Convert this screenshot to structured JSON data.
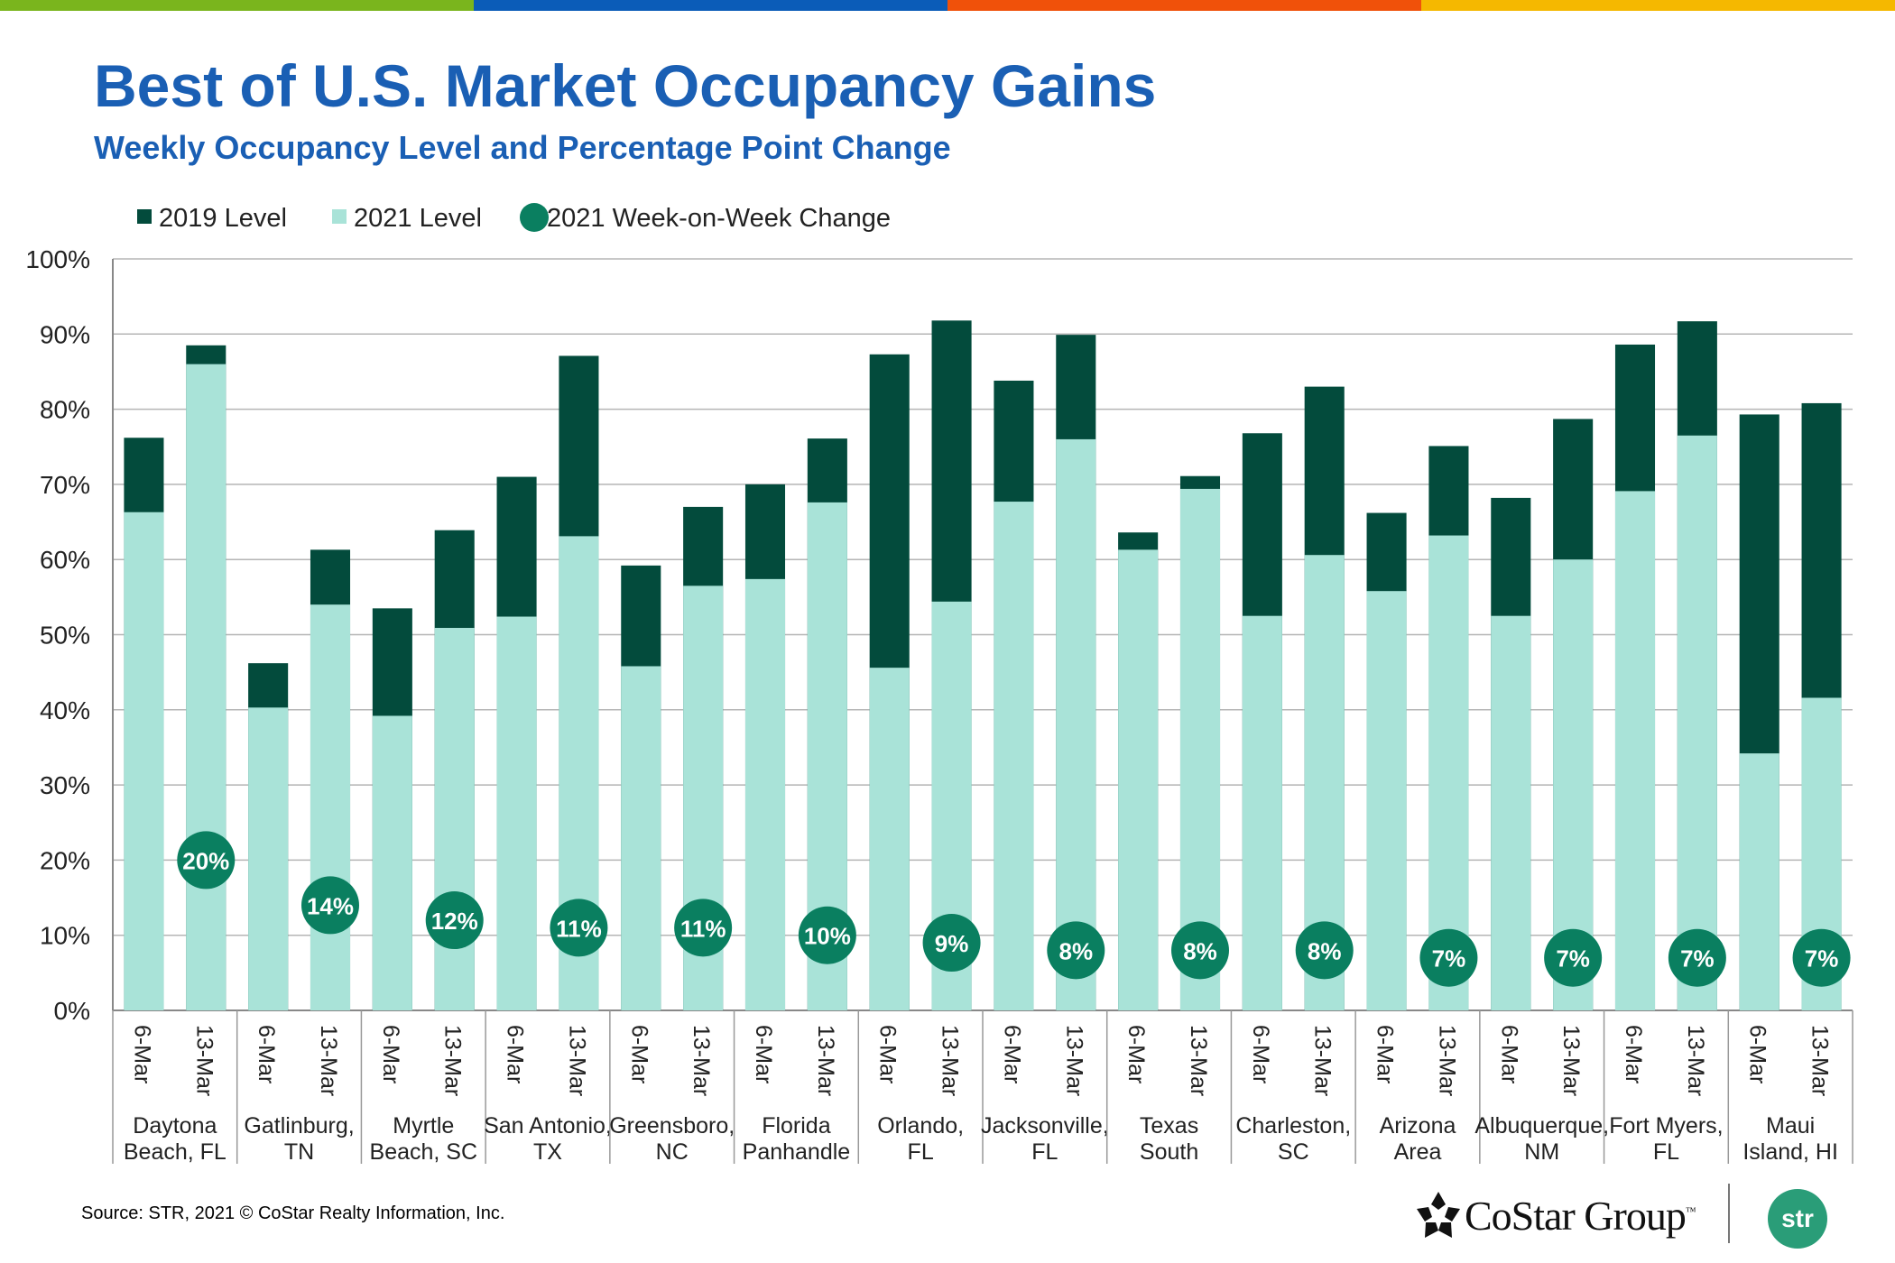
{
  "top_bar_colors": [
    "#7ab51d",
    "#0b5cb8",
    "#f0510a",
    "#f5b800"
  ],
  "header": {
    "title": "Best of U.S. Market Occupancy Gains",
    "subtitle": "Weekly Occupancy Level and Percentage Point Change"
  },
  "footer": {
    "source": "Source: STR, 2021 © CoStar Realty Information, Inc.",
    "costar_logo_text": "CoStar Group",
    "costar_tm": "™",
    "str_logo_text": "str"
  },
  "chart_data": {
    "type": "bar",
    "stacking": "overlapping",
    "y_ticks": [
      "0%",
      "10%",
      "20%",
      "30%",
      "40%",
      "50%",
      "60%",
      "70%",
      "80%",
      "90%",
      "100%"
    ],
    "ylim": [
      0,
      100
    ],
    "grid": true,
    "legend_position": "top-left",
    "legend": [
      {
        "label": "2019 Level",
        "shape": "square",
        "color": "#034b3c"
      },
      {
        "label": "2021 Level",
        "shape": "square",
        "color": "#a9e3d8"
      },
      {
        "label": "2021 Week-on-Week Change",
        "shape": "circle",
        "color": "#0a7f60"
      }
    ],
    "colors": {
      "level_2019": "#034b3c",
      "level_2021": "#a9e3d8",
      "change": "#0a7f60"
    },
    "groups": [
      {
        "market": [
          "Daytona",
          "Beach, FL"
        ],
        "weeks": [
          "6-Mar",
          "13-Mar"
        ],
        "level_2019": [
          76.2,
          88.5
        ],
        "level_2021": [
          66.3,
          86.0
        ],
        "change_label": "20%",
        "change_value": 20
      },
      {
        "market": [
          "Gatlinburg,",
          "TN"
        ],
        "weeks": [
          "6-Mar",
          "13-Mar"
        ],
        "level_2019": [
          46.2,
          61.3
        ],
        "level_2021": [
          40.3,
          54.0
        ],
        "change_label": "14%",
        "change_value": 14
      },
      {
        "market": [
          "Myrtle",
          "Beach, SC"
        ],
        "weeks": [
          "6-Mar",
          "13-Mar"
        ],
        "level_2019": [
          53.5,
          63.9
        ],
        "level_2021": [
          39.2,
          50.9
        ],
        "change_label": "12%",
        "change_value": 12
      },
      {
        "market": [
          "San Antonio,",
          "TX"
        ],
        "weeks": [
          "6-Mar",
          "13-Mar"
        ],
        "level_2019": [
          71.0,
          87.1
        ],
        "level_2021": [
          52.4,
          63.1
        ],
        "change_label": "11%",
        "change_value": 11
      },
      {
        "market": [
          "Greensboro,",
          "NC"
        ],
        "weeks": [
          "6-Mar",
          "13-Mar"
        ],
        "level_2019": [
          59.2,
          67.0
        ],
        "level_2021": [
          45.8,
          56.5
        ],
        "change_label": "11%",
        "change_value": 11
      },
      {
        "market": [
          "Florida",
          "Panhandle"
        ],
        "weeks": [
          "6-Mar",
          "13-Mar"
        ],
        "level_2019": [
          70.0,
          76.1
        ],
        "level_2021": [
          57.4,
          67.6
        ],
        "change_label": "10%",
        "change_value": 10
      },
      {
        "market": [
          "Orlando,",
          "FL"
        ],
        "weeks": [
          "6-Mar",
          "13-Mar"
        ],
        "level_2019": [
          87.3,
          91.8
        ],
        "level_2021": [
          45.6,
          54.4
        ],
        "change_label": "9%",
        "change_value": 9
      },
      {
        "market": [
          "Jacksonville,",
          "FL"
        ],
        "weeks": [
          "6-Mar",
          "13-Mar"
        ],
        "level_2019": [
          83.8,
          89.9
        ],
        "level_2021": [
          67.7,
          76.0
        ],
        "change_label": "8%",
        "change_value": 8
      },
      {
        "market": [
          "Texas",
          "South"
        ],
        "weeks": [
          "6-Mar",
          "13-Mar"
        ],
        "level_2019": [
          63.6,
          71.1
        ],
        "level_2021": [
          61.3,
          69.4
        ],
        "change_label": "8%",
        "change_value": 8
      },
      {
        "market": [
          "Charleston,",
          "SC"
        ],
        "weeks": [
          "6-Mar",
          "13-Mar"
        ],
        "level_2019": [
          76.8,
          83.0
        ],
        "level_2021": [
          52.5,
          60.6
        ],
        "change_label": "8%",
        "change_value": 8
      },
      {
        "market": [
          "Arizona",
          "Area"
        ],
        "weeks": [
          "6-Mar",
          "13-Mar"
        ],
        "level_2019": [
          66.2,
          75.1
        ],
        "level_2021": [
          55.8,
          63.2
        ],
        "change_label": "7%",
        "change_value": 7
      },
      {
        "market": [
          "Albuquerque,",
          "NM"
        ],
        "weeks": [
          "6-Mar",
          "13-Mar"
        ],
        "level_2019": [
          68.2,
          78.7
        ],
        "level_2021": [
          52.5,
          60.0
        ],
        "change_label": "7%",
        "change_value": 7
      },
      {
        "market": [
          "Fort Myers,",
          "FL"
        ],
        "weeks": [
          "6-Mar",
          "13-Mar"
        ],
        "level_2019": [
          88.6,
          91.7
        ],
        "level_2021": [
          69.1,
          76.5
        ],
        "change_label": "7%",
        "change_value": 7
      },
      {
        "market": [
          "Maui",
          "Island, HI"
        ],
        "weeks": [
          "6-Mar",
          "13-Mar"
        ],
        "level_2019": [
          79.3,
          80.8
        ],
        "level_2021": [
          34.2,
          41.6
        ],
        "change_label": "7%",
        "change_value": 7
      }
    ]
  }
}
